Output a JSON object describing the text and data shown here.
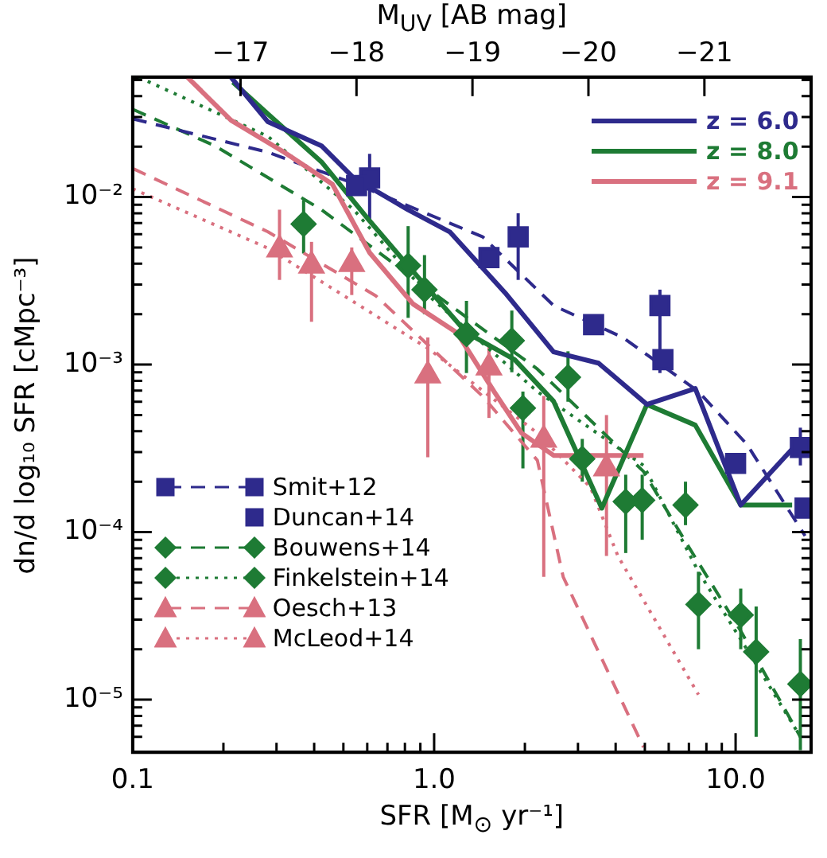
{
  "chart_data": {
    "type": "line",
    "xlabel": "SFR [M$_{⊙}$ yr⁻¹]",
    "ylabel": "dn/d log₁₀ SFR [cMpc⁻³]",
    "x2label": "M$_{UV}$ [AB mag]",
    "log": "xy",
    "grid": false,
    "legend": "top right",
    "xlim": [
      0.1,
      17.8
    ],
    "ylim": [
      4.85e-06,
      0.052
    ],
    "x2lim": [
      -16.07,
      -21.92
    ],
    "xticks": [
      0.1,
      {
        "value": 0.2,
        "label": null
      },
      {
        "value": 0.3,
        "label": null
      },
      {
        "value": 0.4,
        "label": null
      },
      {
        "value": 0.5,
        "label": null
      },
      {
        "value": 0.6,
        "label": null
      },
      {
        "value": 0.7,
        "label": null
      },
      {
        "value": 0.8,
        "label": null
      },
      {
        "value": 0.9,
        "label": null
      },
      {
        "value": 1,
        "label": "1.0"
      },
      {
        "value": 2,
        "label": null
      },
      {
        "value": 3,
        "label": null
      },
      {
        "value": 4,
        "label": null
      },
      {
        "value": 5,
        "label": null
      },
      {
        "value": 6,
        "label": null
      },
      {
        "value": 7,
        "label": null
      },
      {
        "value": 8,
        "label": null
      },
      {
        "value": 9,
        "label": null
      },
      {
        "value": 10,
        "label": "10.0"
      }
    ],
    "yticks": [
      {
        "value": 6e-06,
        "label": null
      },
      {
        "value": 7e-06,
        "label": null
      },
      {
        "value": 8e-06,
        "label": null
      },
      {
        "value": 9e-06,
        "label": null
      },
      {
        "value": 1e-05,
        "label": "10⁻⁵"
      },
      {
        "value": 2e-05,
        "label": null
      },
      {
        "value": 3e-05,
        "label": null
      },
      {
        "value": 4e-05,
        "label": null
      },
      {
        "value": 5e-05,
        "label": null
      },
      {
        "value": 6e-05,
        "label": null
      },
      {
        "value": 7e-05,
        "label": null
      },
      {
        "value": 8e-05,
        "label": null
      },
      {
        "value": 9e-05,
        "label": null
      },
      {
        "value": 0.0001,
        "label": "10⁻⁴"
      },
      {
        "value": 0.0002,
        "label": null
      },
      {
        "value": 0.0003,
        "label": null
      },
      {
        "value": 0.0004,
        "label": null
      },
      {
        "value": 0.0005,
        "label": null
      },
      {
        "value": 0.0006,
        "label": null
      },
      {
        "value": 0.0007,
        "label": null
      },
      {
        "value": 0.0008,
        "label": null
      },
      {
        "value": 0.0009,
        "label": null
      },
      {
        "value": 0.001,
        "label": "10⁻³"
      },
      {
        "value": 0.002,
        "label": null
      },
      {
        "value": 0.003,
        "label": null
      },
      {
        "value": 0.004,
        "label": null
      },
      {
        "value": 0.005,
        "label": null
      },
      {
        "value": 0.006,
        "label": null
      },
      {
        "value": 0.007,
        "label": null
      },
      {
        "value": 0.008,
        "label": null
      },
      {
        "value": 0.009,
        "label": null
      },
      {
        "value": 0.01,
        "label": "10⁻²"
      },
      {
        "value": 0.02,
        "label": null
      },
      {
        "value": 0.03,
        "label": null
      },
      {
        "value": 0.04,
        "label": null
      },
      {
        "value": 0.05,
        "label": null
      }
    ],
    "x2ticks": [
      {
        "value": -17,
        "label": "−17"
      },
      {
        "value": -18,
        "label": "−18"
      },
      {
        "value": -19,
        "label": "−19"
      },
      {
        "value": -20,
        "label": "−20"
      },
      {
        "value": -21,
        "label": "−21"
      }
    ],
    "series": [
      {
        "name": "z = 6.0",
        "color": "#2e2a8c",
        "line_style": "solid",
        "marker": "none",
        "x": [
          0.212,
          0.281,
          0.423,
          0.541,
          0.82,
          1.13,
          1.72,
          2.49,
          3.51,
          5.08,
          7.35,
          10.4,
          15.4
        ],
        "values": [
          0.0518,
          0.0281,
          0.0202,
          0.013,
          0.00839,
          0.00617,
          0.00268,
          0.00119,
          0.00102,
          0.000578,
          0.00072,
          0.000145,
          0.000313
        ]
      },
      {
        "name": "z = 8.0",
        "color": "#1e7b34",
        "line_style": "solid",
        "marker": "none",
        "x": [
          0.215,
          0.281,
          0.423,
          0.611,
          0.82,
          1.28,
          1.85,
          2.49,
          3.6,
          5.08,
          7.35,
          10.4,
          15.4
        ],
        "values": [
          0.0485,
          0.0313,
          0.0162,
          0.0072,
          0.00389,
          0.00155,
          0.00107,
          0.000604,
          0.000139,
          0.000578,
          0.000435,
          0.000145,
          0.000145
        ]
      },
      {
        "name": "z = 9.1",
        "color": "#d9707f",
        "line_style": "solid",
        "marker": "none",
        "x": [
          0.152,
          0.212,
          0.318,
          0.46,
          0.611,
          0.851,
          1.19,
          1.58,
          1.95,
          2.49,
          4.95
        ],
        "values": [
          0.0518,
          0.0287,
          0.0185,
          0.0119,
          0.00465,
          0.0023,
          0.00155,
          0.00069,
          0.00039,
          0.000287,
          0.000287
        ]
      },
      {
        "name": "Smit+12",
        "type": "scatter",
        "color": "#2e2a8c",
        "marker": "square",
        "x": [
          0.553,
          1.52,
          3.38,
          5.74,
          10.0,
          17.0
        ],
        "values": [
          0.0117,
          0.00435,
          0.00173,
          0.00107,
          0.000257,
          0.000139
        ]
      },
      {
        "color": "#2e2a8c",
        "line_style": "dashed",
        "marker": "none",
        "x": [
          0.1,
          0.281,
          0.553,
          1.45,
          2.49,
          4.23,
          7.53,
          10.9,
          17.0
        ],
        "values": [
          0.0293,
          0.0185,
          0.0119,
          0.00578,
          0.00225,
          0.00145,
          0.00069,
          0.000334,
          9.5e-05
        ]
      },
      {
        "name": "Duncan+14",
        "type": "scatter",
        "color": "#2e2a8c",
        "marker": "square",
        "x": [
          0.611,
          1.9,
          5.61,
          16.4
        ],
        "values": [
          0.013,
          0.00578,
          0.00225,
          0.00032
        ],
        "errors": [
          [
            0.0072,
            0.0181
          ],
          [
            0.0032,
            0.008
          ],
          [
            0.00089,
            0.0028
          ],
          [
            0.00025,
            0.00042
          ]
        ]
      },
      {
        "name": "Bouwens+14",
        "type": "scatter",
        "color": "#1e7b34",
        "marker": "diamond",
        "x": [
          0.369,
          0.929,
          1.81,
          2.78,
          4.32,
          6.82,
          10.4,
          16.4
        ],
        "values": [
          0.0069,
          0.0028,
          0.00139,
          0.00084,
          0.000152,
          0.000145,
          3.2e-05,
          1.24e-05
        ],
        "errors": [
          [
            0.0046,
            0.0096
          ],
          [
            0.002,
            0.0045
          ],
          [
            0.0009,
            0.0021
          ],
          [
            0.0006,
            0.0012
          ],
          [
            7.5e-05,
            0.00022
          ],
          [
            0.00011,
            0.0002
          ],
          [
            2e-05,
            4.6e-05
          ],
          [
            5e-06,
            2.3e-05
          ]
        ]
      },
      {
        "color": "#1e7b34",
        "line_style": "dashed",
        "marker": "none",
        "x": [
          0.1,
          0.1875,
          0.423,
          0.96,
          2.2,
          4.95,
          6.92,
          10.4,
          16.4
        ],
        "values": [
          0.0334,
          0.0202,
          0.0084,
          0.0028,
          0.00094,
          0.00023,
          8.4e-05,
          2.57e-05,
          6e-06
        ]
      },
      {
        "name": "Finkelstein+14",
        "type": "scatter",
        "color": "#1e7b34",
        "marker": "diamond",
        "x": [
          0.82,
          1.28,
          1.97,
          3.1,
          4.9,
          7.53,
          11.7
        ],
        "values": [
          0.00389,
          0.00152,
          0.00055,
          0.000274,
          0.000155,
          3.7e-05,
          1.93e-05
        ],
        "errors": [
          [
            0.0019,
            0.0067
          ],
          [
            0.00089,
            0.0024
          ],
          [
            0.00024,
            0.00069
          ],
          [
            0.0002,
            0.00036
          ],
          [
            9e-05,
            0.00022
          ],
          [
            2e-05,
            5.8e-05
          ],
          [
            6e-06,
            3.6e-05
          ]
        ]
      },
      {
        "color": "#1e7b34",
        "line_style": "dotted",
        "marker": "none",
        "x": [
          0.105,
          0.281,
          0.541,
          0.96,
          2.2,
          4.95,
          7.53,
          11.3,
          16.4
        ],
        "values": [
          0.0518,
          0.023,
          0.0084,
          0.00257,
          0.00069,
          0.00025,
          5.8e-05,
          1.8e-05,
          6e-06
        ]
      },
      {
        "name": "Oesch+13",
        "type": "scatter",
        "color": "#d9707f",
        "marker": "triangle",
        "x": [
          0.392,
          0.953,
          2.31
        ],
        "values": [
          0.00389,
          0.00086,
          0.000356
        ],
        "errors": [
          [
            0.0018,
            0.0054
          ],
          [
            0.00028,
            0.00145
          ],
          [
            5.4e-05,
            0.00065
          ]
        ]
      },
      {
        "color": "#d9707f",
        "line_style": "dashed",
        "marker": "none",
        "x": [
          0.1,
          0.281,
          0.641,
          1.45,
          2.2,
          2.68,
          4.95
        ],
        "values": [
          0.0148,
          0.0062,
          0.00257,
          0.000645,
          0.000268,
          5.4e-05,
          5.2e-06
        ]
      },
      {
        "name": "McLeod+14",
        "type": "scatter",
        "color": "#d9707f",
        "marker": "triangle",
        "x": [
          0.307,
          0.533,
          1.52,
          3.73
        ],
        "values": [
          0.00486,
          0.00398,
          0.00096,
          0.00024
        ],
        "errors": [
          [
            0.0032,
            0.0084
          ],
          [
            0.0026,
            0.005
          ],
          [
            0.00048,
            0.00133
          ],
          [
            7.2e-05,
            0.0005
          ]
        ]
      },
      {
        "color": "#d9707f",
        "line_style": "dotted",
        "marker": "none",
        "x": [
          0.1,
          0.281,
          0.96,
          2.2,
          3.3,
          4.07,
          7.53
        ],
        "values": [
          0.0112,
          0.00495,
          0.00124,
          0.00039,
          0.000185,
          7.2e-05,
          1.07e-05
        ]
      }
    ]
  }
}
